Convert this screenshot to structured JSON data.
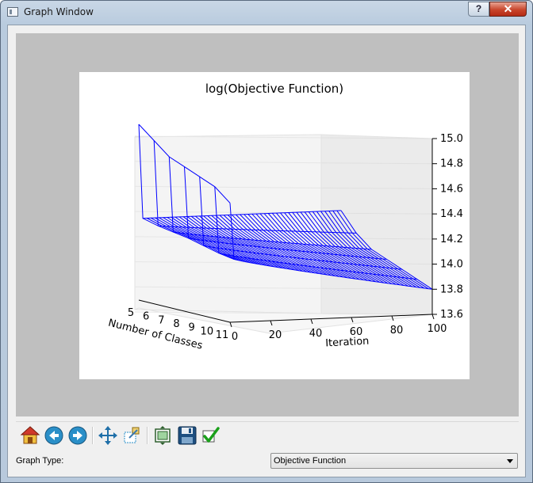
{
  "window": {
    "title": "Graph Window",
    "help_label": "?",
    "close_label": "✕"
  },
  "chart_data": {
    "type": "surface-3d",
    "title": "log(Objective Function)",
    "xlabel": "Iteration",
    "ylabel": "Number of Classes",
    "zlabel": "",
    "x_ticks": [
      "0",
      "20",
      "40",
      "60",
      "80",
      "100"
    ],
    "y_ticks": [
      "5",
      "6",
      "7",
      "8",
      "9",
      "10",
      "11"
    ],
    "z_ticks": [
      "13.6",
      "13.8",
      "14.0",
      "14.2",
      "14.4",
      "14.6",
      "14.8",
      "15.0"
    ],
    "xlim": [
      0,
      100
    ],
    "zlim": [
      13.6,
      15.0
    ],
    "grid": true,
    "series_color": "#0000ff",
    "classes": [
      5,
      6,
      7,
      8,
      9,
      10,
      11
    ],
    "initial_values": [
      15.0,
      14.9,
      14.8,
      14.75,
      14.7,
      14.65,
      14.55
    ],
    "converged_values": [
      14.25,
      14.22,
      14.2,
      14.18,
      14.15,
      14.12,
      14.1
    ],
    "final_values": [
      14.25,
      14.1,
      14.0,
      13.95,
      13.9,
      13.85,
      13.8
    ]
  },
  "toolbar": {
    "buttons": [
      {
        "name": "home-button",
        "icon": "home-icon"
      },
      {
        "name": "back-button",
        "icon": "back-arrow-icon"
      },
      {
        "name": "forward-button",
        "icon": "forward-arrow-icon"
      },
      {
        "name": "pan-button",
        "icon": "move-icon"
      },
      {
        "name": "zoom-button",
        "icon": "zoom-rect-icon"
      },
      {
        "name": "configure-button",
        "icon": "subplots-icon"
      },
      {
        "name": "save-button",
        "icon": "floppy-disk-icon"
      },
      {
        "name": "apply-button",
        "icon": "checkmark-icon"
      }
    ]
  },
  "controls": {
    "graph_type_label": "Graph Type:",
    "graph_type_value": "Objective Function"
  }
}
